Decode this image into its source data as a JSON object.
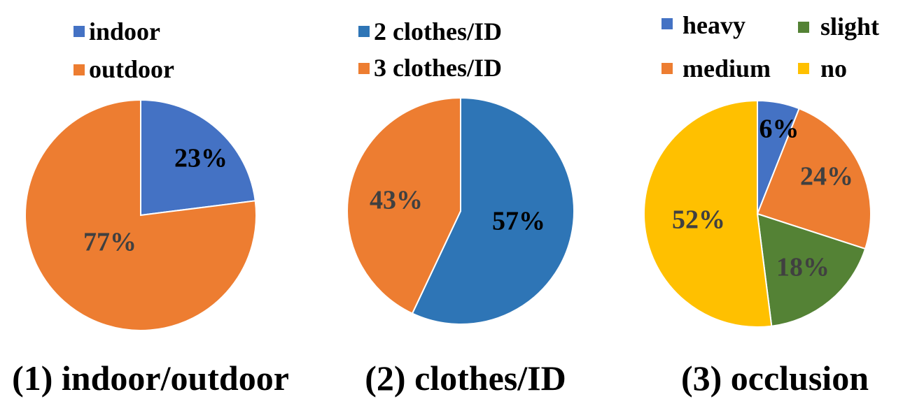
{
  "chart_data": [
    {
      "type": "pie",
      "caption": "(1) indoor/outdoor",
      "slices": [
        {
          "name": "indoor",
          "value": 23,
          "label": "23%",
          "color": "#4472C4",
          "label_color": "#000000"
        },
        {
          "name": "outdoor",
          "value": 77,
          "label": "77%",
          "color": "#ED7D31",
          "label_color": "#404040"
        }
      ],
      "legend_placement": "top"
    },
    {
      "type": "pie",
      "caption": "(2) clothes/ID",
      "slices": [
        {
          "name": "2 clothes/ID",
          "value": 57,
          "label": "57%",
          "color": "#2E75B6",
          "label_color": "#000000"
        },
        {
          "name": "3 clothes/ID",
          "value": 43,
          "label": "43%",
          "color": "#ED7D31",
          "label_color": "#404040"
        }
      ],
      "legend_placement": "top"
    },
    {
      "type": "pie",
      "caption": "(3) occlusion",
      "slices": [
        {
          "name": "heavy",
          "value": 6,
          "label": "6%",
          "color": "#4472C4",
          "label_color": "#000000"
        },
        {
          "name": "medium",
          "value": 24,
          "label": "24%",
          "color": "#ED7D31",
          "label_color": "#404040"
        },
        {
          "name": "slight",
          "value": 18,
          "label": "18%",
          "color": "#548235",
          "label_color": "#404040"
        },
        {
          "name": "no",
          "value": 52,
          "label": "52%",
          "color": "#FFC000",
          "label_color": "#404040"
        }
      ],
      "legend_placement": "top"
    }
  ]
}
